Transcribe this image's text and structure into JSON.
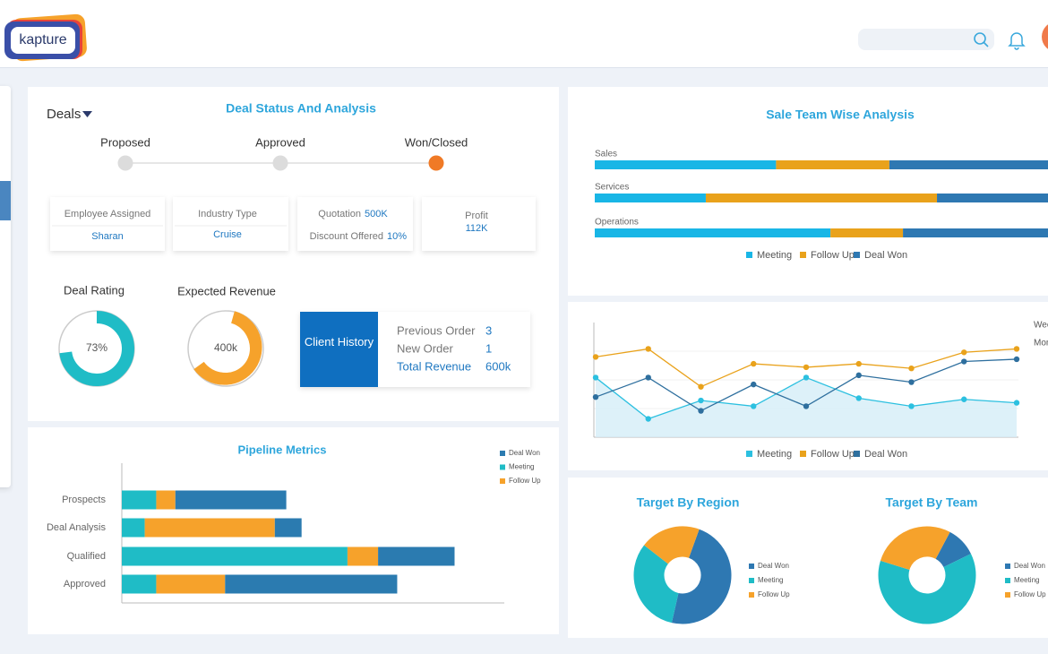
{
  "header": {
    "logo": "kapture"
  },
  "deal_status": {
    "dropdown": "Deals",
    "title": "Deal Status And Analysis",
    "stages": [
      "Proposed",
      "Approved",
      "Won/Closed"
    ],
    "active_stage": 2,
    "cards": [
      {
        "label": "Employee Assigned",
        "value": "Sharan"
      },
      {
        "label": "Industry Type",
        "value": "Cruise"
      },
      {
        "label": "Quotation",
        "value": "500K"
      },
      {
        "label": "Discount Offered",
        "value": "10%"
      },
      {
        "label": "Profit",
        "value": "112K"
      }
    ],
    "deal_rating": {
      "title": "Deal Rating",
      "value": 73,
      "value_label": "73%"
    },
    "expected_revenue": {
      "title": "Expected Revenue",
      "label": "400k"
    },
    "client_history": {
      "title": "Client History",
      "rows": [
        {
          "label": "Previous Order",
          "value": 3
        },
        {
          "label": "New Order",
          "value": 1
        },
        {
          "label": "Total Revenue",
          "value": "600k"
        }
      ]
    }
  },
  "chart_data": [
    {
      "type": "hbar",
      "title": "Pipeline Metrics",
      "categories": [
        "Prospects",
        "Deal Analysis",
        "Qualified",
        "Approved"
      ],
      "xlim": [
        0,
        100
      ],
      "series": [
        {
          "name": "Meeting",
          "color": "#1fbcc6",
          "values": [
            9,
            6,
            59,
            9
          ]
        },
        {
          "name": "Follow Up",
          "color": "#f6a22b",
          "values": [
            5,
            34,
            8,
            18
          ]
        },
        {
          "name": "Deal Won",
          "color": "#2b7bb0",
          "values": [
            29,
            7,
            20,
            45
          ]
        }
      ],
      "legend_order": [
        2,
        0,
        1
      ]
    },
    {
      "type": "hbar",
      "title": "Sale Team Wise Analysis",
      "categories": [
        "Sales",
        "Services",
        "Operations"
      ],
      "xlim": [
        0,
        100
      ],
      "series": [
        {
          "name": "Meeting",
          "color": "#19b6e6",
          "values": [
            40,
            24.5,
            52
          ]
        },
        {
          "name": "Follow Up",
          "color": "#e9a21b",
          "values": [
            25,
            51,
            16
          ]
        },
        {
          "name": "Deal Won",
          "color": "#2e78b2",
          "values": [
            35,
            24.5,
            32
          ]
        }
      ]
    },
    {
      "type": "line",
      "categories": [
        null,
        null,
        null,
        null,
        null,
        null,
        null,
        null,
        null
      ],
      "ylim": [
        0,
        100
      ],
      "legend_right": [
        "Week",
        "Month"
      ],
      "series": [
        {
          "name": "Meeting",
          "color": "#2cc0e0",
          "values": [
            52,
            16,
            32,
            27,
            52,
            34,
            27,
            33,
            30
          ]
        },
        {
          "name": "Follow Up",
          "color": "#e9a21b",
          "values": [
            70,
            77,
            44,
            64,
            61,
            64,
            60,
            74,
            77
          ]
        },
        {
          "name": "Deal Won",
          "color": "#2e6f9e",
          "values": [
            35,
            52,
            23,
            46,
            27,
            54,
            48,
            66,
            68
          ]
        }
      ]
    },
    {
      "type": "pie",
      "title": "Target By Region",
      "categories": [
        "Deal Won",
        "Meeting",
        "Follow Up"
      ],
      "colors": [
        "#2e78b2",
        "#1fbcc6",
        "#f6a22b"
      ],
      "values": [
        48,
        32,
        20
      ]
    },
    {
      "type": "pie",
      "title": "Target By Team",
      "categories": [
        "Deal Won",
        "Meeting",
        "Follow Up"
      ],
      "colors": [
        "#2e78b2",
        "#1fbcc6",
        "#f6a22b"
      ],
      "values": [
        10,
        62,
        28
      ]
    }
  ]
}
